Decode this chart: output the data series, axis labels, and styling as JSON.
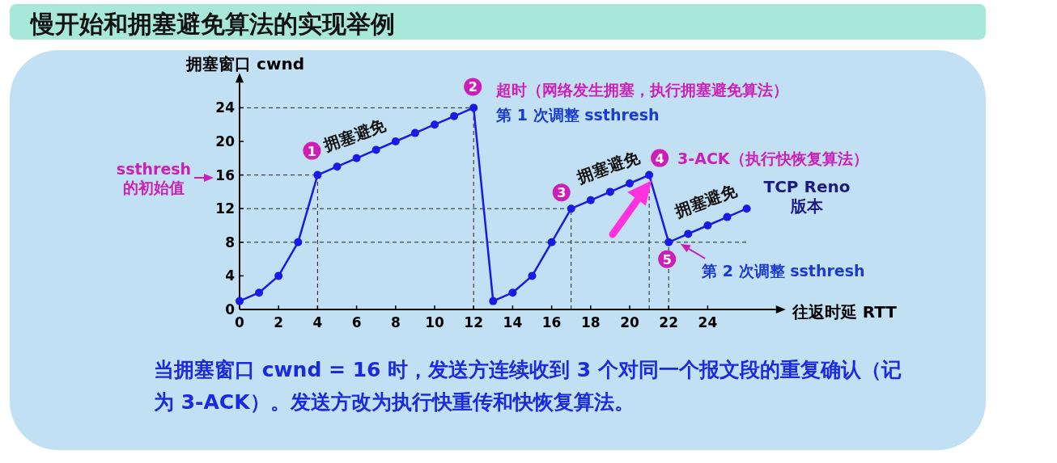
{
  "chart_data": {
    "type": "line",
    "title": "慢开始和拥塞避免算法的实现举例",
    "xlabel": "往返时延 RTT",
    "ylabel": "拥塞窗口 cwnd",
    "x": [
      0,
      1,
      2,
      3,
      4,
      5,
      6,
      7,
      8,
      9,
      10,
      11,
      12,
      13,
      14,
      15,
      16,
      17,
      18,
      19,
      20,
      21,
      22,
      23,
      24,
      25,
      26
    ],
    "series": [
      {
        "color": "#1a1ae6",
        "values": [
          1,
          2,
          4,
          8,
          16,
          17,
          18,
          19,
          20,
          21,
          22,
          23,
          24,
          1,
          2,
          4,
          8,
          12,
          13,
          14,
          15,
          16,
          8,
          9,
          10,
          11,
          12
        ]
      }
    ],
    "xlim": [
      0,
      27.5
    ],
    "ylim": [
      0,
      27
    ],
    "xticks": [
      0,
      2,
      4,
      6,
      8,
      10,
      12,
      14,
      16,
      18,
      20,
      22,
      24
    ],
    "yticks": [
      0,
      4,
      8,
      12,
      16,
      20,
      24
    ],
    "grid": false,
    "marker": "circle",
    "line_style": "solid",
    "ref_lines": [
      {
        "axis": "y",
        "value": 24,
        "line_style": "dashed"
      },
      {
        "axis": "y",
        "value": 16,
        "line_style": "dashed"
      },
      {
        "axis": "y",
        "value": 12,
        "line_style": "dashed"
      },
      {
        "axis": "y",
        "value": 8,
        "line_style": "dashed"
      },
      {
        "axis": "x",
        "value": 4,
        "line_style": "dashed"
      },
      {
        "axis": "x",
        "value": 12,
        "line_style": "dashed"
      },
      {
        "axis": "x",
        "value": 17,
        "line_style": "dashed"
      },
      {
        "axis": "x",
        "value": 21,
        "line_style": "dashed"
      },
      {
        "axis": "x",
        "value": 22,
        "line_style": "dashed"
      }
    ],
    "annotations": [
      {
        "text": "拥塞避免",
        "x": 6,
        "y": 18
      },
      {
        "text": "拥塞避免",
        "x": 19,
        "y": 14
      },
      {
        "text": "拥塞避免",
        "x": 24,
        "y": 10
      },
      {
        "text": "1",
        "x": 4,
        "y": 16
      },
      {
        "text": "2",
        "x": 12,
        "y": 24
      },
      {
        "text": "3",
        "x": 17,
        "y": 12
      },
      {
        "text": "4",
        "x": 21,
        "y": 16
      },
      {
        "text": "5",
        "x": 22,
        "y": 8
      },
      {
        "text": "超时（网络发生拥塞，执行拥塞避免算法）",
        "x": 12,
        "y": 24
      },
      {
        "text": "第 1 次调整 ssthresh",
        "x": 12,
        "y": 24
      },
      {
        "text": "3-ACK（执行快恢复算法）",
        "x": 21,
        "y": 16
      },
      {
        "text": "第 2 次调整 ssthresh",
        "x": 22,
        "y": 8
      },
      "ssthresh\n的初始值",
      "TCP Reno\n版本",
      "当拥塞窗口 cwnd = 16 时，发送方连续收到 3 个对同一个报文段的重复确认（记为 3-ACK）。发送方改为执行快重传和快恢复算法。"
    ]
  }
}
